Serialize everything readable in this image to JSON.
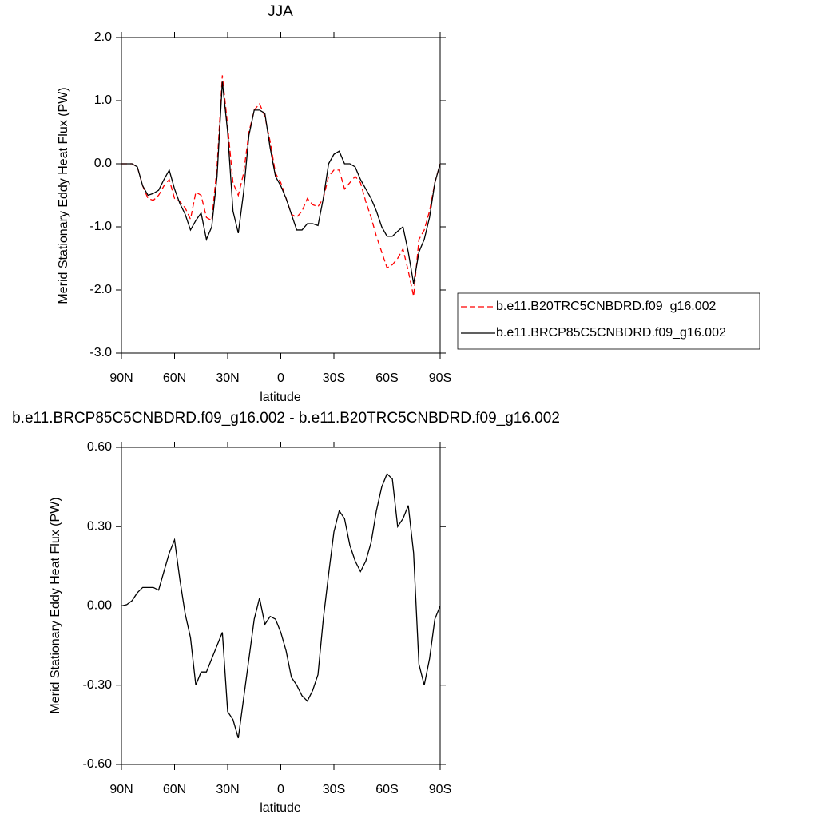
{
  "chart_data": [
    {
      "type": "line",
      "title": "JJA",
      "x_label": "latitude",
      "y_label": "Merid Stationary Eddy Heat Flux (PW)",
      "x": [
        90,
        87,
        84,
        81,
        78,
        75,
        72,
        69,
        66,
        63,
        60,
        57,
        54,
        51,
        48,
        45,
        42,
        39,
        36,
        33,
        30,
        27,
        24,
        21,
        18,
        15,
        12,
        9,
        6,
        3,
        0,
        -3,
        -6,
        -9,
        -12,
        -15,
        -18,
        -21,
        -24,
        -27,
        -30,
        -33,
        -36,
        -39,
        -42,
        -45,
        -48,
        -51,
        -54,
        -57,
        -60,
        -63,
        -66,
        -69,
        -72,
        -75,
        -78,
        -81,
        -84,
        -87,
        -90
      ],
      "xlim": [
        90,
        -90
      ],
      "xticks": [
        {
          "value": 90,
          "label": "90N"
        },
        {
          "value": 60,
          "label": "60N"
        },
        {
          "value": 30,
          "label": "30N"
        },
        0,
        {
          "value": -30,
          "label": "30S"
        },
        {
          "value": -60,
          "label": "60S"
        },
        {
          "value": -90,
          "label": "90S"
        }
      ],
      "ylim": [
        -3.0,
        2.0
      ],
      "yticks": [
        {
          "value": 2,
          "label": "2.0"
        },
        {
          "value": 1,
          "label": "1.0"
        },
        {
          "value": 0,
          "label": "0.0"
        },
        {
          "value": -1,
          "label": "-1.0"
        },
        {
          "value": -2,
          "label": "-2.0"
        },
        {
          "value": -3,
          "label": "-3.0"
        }
      ],
      "legend": "right",
      "series": [
        {
          "name": "b.e11.B20TRC5CNBDRD.f09_g16.002",
          "color": "#ff0000",
          "line_style": "dashed",
          "values": [
            0,
            0,
            0,
            -0.05,
            -0.35,
            -0.55,
            -0.58,
            -0.5,
            -0.35,
            -0.25,
            -0.55,
            -0.6,
            -0.7,
            -0.88,
            -0.45,
            -0.5,
            -0.85,
            -0.9,
            -0.05,
            1.4,
            0.6,
            -0.3,
            -0.5,
            -0.15,
            0.5,
            0.85,
            0.95,
            0.75,
            0.35,
            -0.15,
            -0.3,
            -0.55,
            -0.8,
            -0.85,
            -0.75,
            -0.55,
            -0.65,
            -0.68,
            -0.55,
            -0.2,
            -0.1,
            -0.1,
            -0.4,
            -0.3,
            -0.2,
            -0.3,
            -0.6,
            -0.85,
            -1.15,
            -1.4,
            -1.65,
            -1.6,
            -1.5,
            -1.35,
            -1.7,
            -2.1,
            -1.2,
            -1.05,
            -0.75,
            -0.3,
            0
          ]
        },
        {
          "name": "b.e11.BRCP85C5CNBDRD.f09_g16.002",
          "color": "#000000",
          "line_style": "solid",
          "values": [
            0,
            0,
            0,
            -0.05,
            -0.35,
            -0.5,
            -0.47,
            -0.42,
            -0.25,
            -0.1,
            -0.4,
            -0.63,
            -0.8,
            -1.05,
            -0.9,
            -0.78,
            -1.2,
            -1.0,
            -0.2,
            1.3,
            0.5,
            -0.75,
            -1.1,
            -0.45,
            0.45,
            0.85,
            0.85,
            0.8,
            0.25,
            -0.2,
            -0.35,
            -0.55,
            -0.8,
            -1.05,
            -1.05,
            -0.95,
            -0.95,
            -0.98,
            -0.55,
            0.0,
            0.15,
            0.2,
            0.0,
            0.0,
            -0.05,
            -0.25,
            -0.4,
            -0.55,
            -0.75,
            -1.0,
            -1.15,
            -1.15,
            -1.07,
            -1.0,
            -1.4,
            -1.9,
            -1.4,
            -1.2,
            -0.85,
            -0.3,
            0
          ]
        }
      ]
    },
    {
      "type": "line",
      "title": "b.e11.BRCP85C5CNBDRD.f09_g16.002 - b.e11.B20TRC5CNBDRD.f09_g16.002",
      "x_label": "latitude",
      "y_label": "Merid Stationary Eddy Heat Flux (PW)",
      "x": [
        90,
        87,
        84,
        81,
        78,
        75,
        72,
        69,
        66,
        63,
        60,
        57,
        54,
        51,
        48,
        45,
        42,
        39,
        36,
        33,
        30,
        27,
        24,
        21,
        18,
        15,
        12,
        9,
        6,
        3,
        0,
        -3,
        -6,
        -9,
        -12,
        -15,
        -18,
        -21,
        -24,
        -27,
        -30,
        -33,
        -36,
        -39,
        -42,
        -45,
        -48,
        -51,
        -54,
        -57,
        -60,
        -63,
        -66,
        -69,
        -72,
        -75,
        -78,
        -81,
        -84,
        -87,
        -90
      ],
      "xlim": [
        90,
        -90
      ],
      "xticks": [
        {
          "value": 90,
          "label": "90N"
        },
        {
          "value": 60,
          "label": "60N"
        },
        {
          "value": 30,
          "label": "30N"
        },
        0,
        {
          "value": -30,
          "label": "30S"
        },
        {
          "value": -60,
          "label": "60S"
        },
        {
          "value": -90,
          "label": "90S"
        }
      ],
      "ylim": [
        -0.6,
        0.6
      ],
      "yticks": [
        {
          "value": 0.6,
          "label": "0.60"
        },
        {
          "value": 0.3,
          "label": "0.30"
        },
        {
          "value": 0,
          "label": "0.00"
        },
        {
          "value": -0.3,
          "label": "-0.30"
        },
        {
          "value": -0.6,
          "label": "-0.60"
        }
      ],
      "series": [
        {
          "color": "#000000",
          "line_style": "solid",
          "values": [
            0,
            0.005,
            0.02,
            0.05,
            0.07,
            0.07,
            0.07,
            0.06,
            0.13,
            0.2,
            0.25,
            0.1,
            -0.03,
            -0.12,
            -0.3,
            -0.25,
            -0.25,
            -0.2,
            -0.15,
            -0.1,
            -0.4,
            -0.43,
            -0.5,
            -0.35,
            -0.2,
            -0.05,
            0.03,
            -0.07,
            -0.04,
            -0.05,
            -0.1,
            -0.17,
            -0.27,
            -0.3,
            -0.34,
            -0.36,
            -0.32,
            -0.26,
            -0.05,
            0.12,
            0.28,
            0.36,
            0.33,
            0.23,
            0.17,
            0.13,
            0.17,
            0.24,
            0.36,
            0.45,
            0.5,
            0.48,
            0.3,
            0.33,
            0.38,
            0.2,
            -0.22,
            -0.3,
            -0.2,
            -0.05,
            0
          ]
        }
      ]
    }
  ]
}
